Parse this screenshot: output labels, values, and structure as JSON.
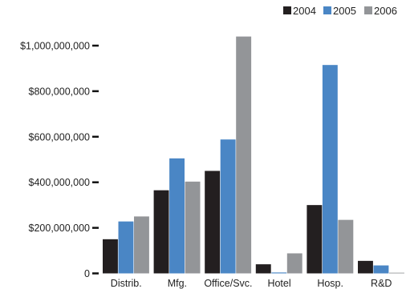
{
  "chart_data": {
    "type": "bar",
    "title": "",
    "xlabel": "",
    "ylabel": "",
    "categories": [
      "Distrib.",
      "Mfg.",
      "Office/Svc.",
      "Hotel",
      "Hosp.",
      "R&D"
    ],
    "series": [
      {
        "name": "2004",
        "color": "#231f20",
        "values": [
          150000000,
          365000000,
          450000000,
          40000000,
          300000000,
          55000000
        ]
      },
      {
        "name": "2005",
        "color": "#4a86c5",
        "values": [
          228000000,
          505000000,
          588000000,
          4000000,
          915000000,
          35000000
        ]
      },
      {
        "name": "2006",
        "color": "#939598",
        "values": [
          250000000,
          403000000,
          1040000000,
          88000000,
          235000000,
          3000000
        ]
      }
    ],
    "ylim": [
      0,
      1000000000
    ],
    "yticks": [
      {
        "value": 0,
        "label": "0"
      },
      {
        "value": 200000000,
        "label": "$200,000,000"
      },
      {
        "value": 400000000,
        "label": "$400,000,000"
      },
      {
        "value": 600000000,
        "label": "$600,000,000"
      },
      {
        "value": 800000000,
        "label": "$800,000,000"
      },
      {
        "value": 1000000000,
        "label": "$1,000,000,000"
      }
    ],
    "grid": false,
    "legend_position": "top-right"
  }
}
